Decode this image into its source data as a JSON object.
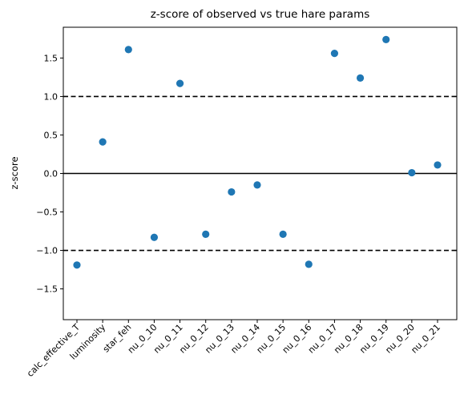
{
  "chart_data": {
    "type": "scatter",
    "title": "z-score of observed vs true hare params",
    "xlabel": "",
    "ylabel": "z-score",
    "categories": [
      "calc_effective_T",
      "luminosity",
      "star_feh",
      "nu_0_10",
      "nu_0_11",
      "nu_0_12",
      "nu_0_13",
      "nu_0_14",
      "nu_0_15",
      "nu_0_16",
      "nu_0_17",
      "nu_0_18",
      "nu_0_19",
      "nu_0_20",
      "nu_0_21"
    ],
    "values": [
      -1.19,
      0.41,
      1.61,
      -0.83,
      1.17,
      -0.79,
      -0.24,
      -0.15,
      -0.79,
      -1.18,
      1.56,
      1.24,
      1.74,
      0.01,
      0.11
    ],
    "ylim": [
      -1.9,
      1.9
    ],
    "yticks": [
      -1.5,
      -1.0,
      -0.5,
      0.0,
      0.5,
      1.0,
      1.5
    ],
    "ytick_labels": [
      "−1.5",
      "−1.0",
      "−0.5",
      "0.0",
      "0.5",
      "1.0",
      "1.5"
    ],
    "reference_lines": [
      {
        "y": 0.0,
        "style": "solid"
      },
      {
        "y": 1.0,
        "style": "dashed"
      },
      {
        "y": -1.0,
        "style": "dashed"
      }
    ],
    "marker_color": "#1f77b4",
    "line_color": "#000000",
    "grid": false,
    "legend": "none"
  }
}
